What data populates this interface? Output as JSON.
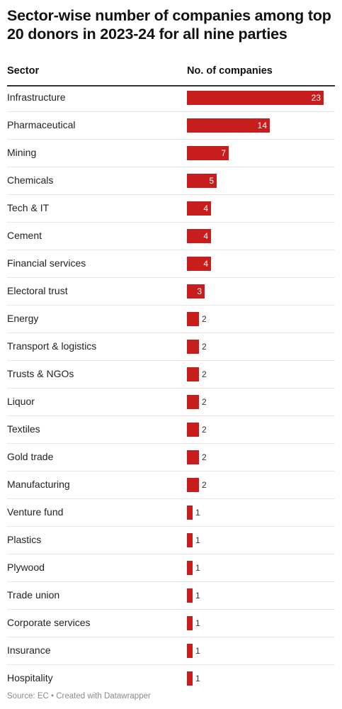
{
  "header": {
    "title": "Sector-wise number of companies among top 20 donors in 2023-24 for all nine parties"
  },
  "table": {
    "col_sector": "Sector",
    "col_count": "No. of companies"
  },
  "footer": {
    "source": "Source: EC • Created with Datawrapper"
  },
  "colors": {
    "bar": "#c71e1d"
  },
  "chart_data": {
    "type": "bar",
    "orientation": "horizontal",
    "title": "Sector-wise number of companies among top 20 donors in 2023-24 for all nine parties",
    "categories": [
      "Infrastructure",
      "Pharmaceutical",
      "Mining",
      "Chemicals",
      "Tech & IT",
      "Cement",
      "Financial services",
      "Electoral trust",
      "Energy",
      "Transport & logistics",
      "Trusts & NGOs",
      "Liquor",
      "Textiles",
      "Gold trade",
      "Manufacturing",
      "Venture fund",
      "Plastics",
      "Plywood",
      "Trade union",
      "Corporate services",
      "Insurance",
      "Hospitality"
    ],
    "values": [
      23,
      14,
      7,
      5,
      4,
      4,
      4,
      3,
      2,
      2,
      2,
      2,
      2,
      2,
      2,
      1,
      1,
      1,
      1,
      1,
      1,
      1
    ],
    "xlim": [
      0,
      23
    ],
    "grid": false,
    "legend": "none"
  }
}
